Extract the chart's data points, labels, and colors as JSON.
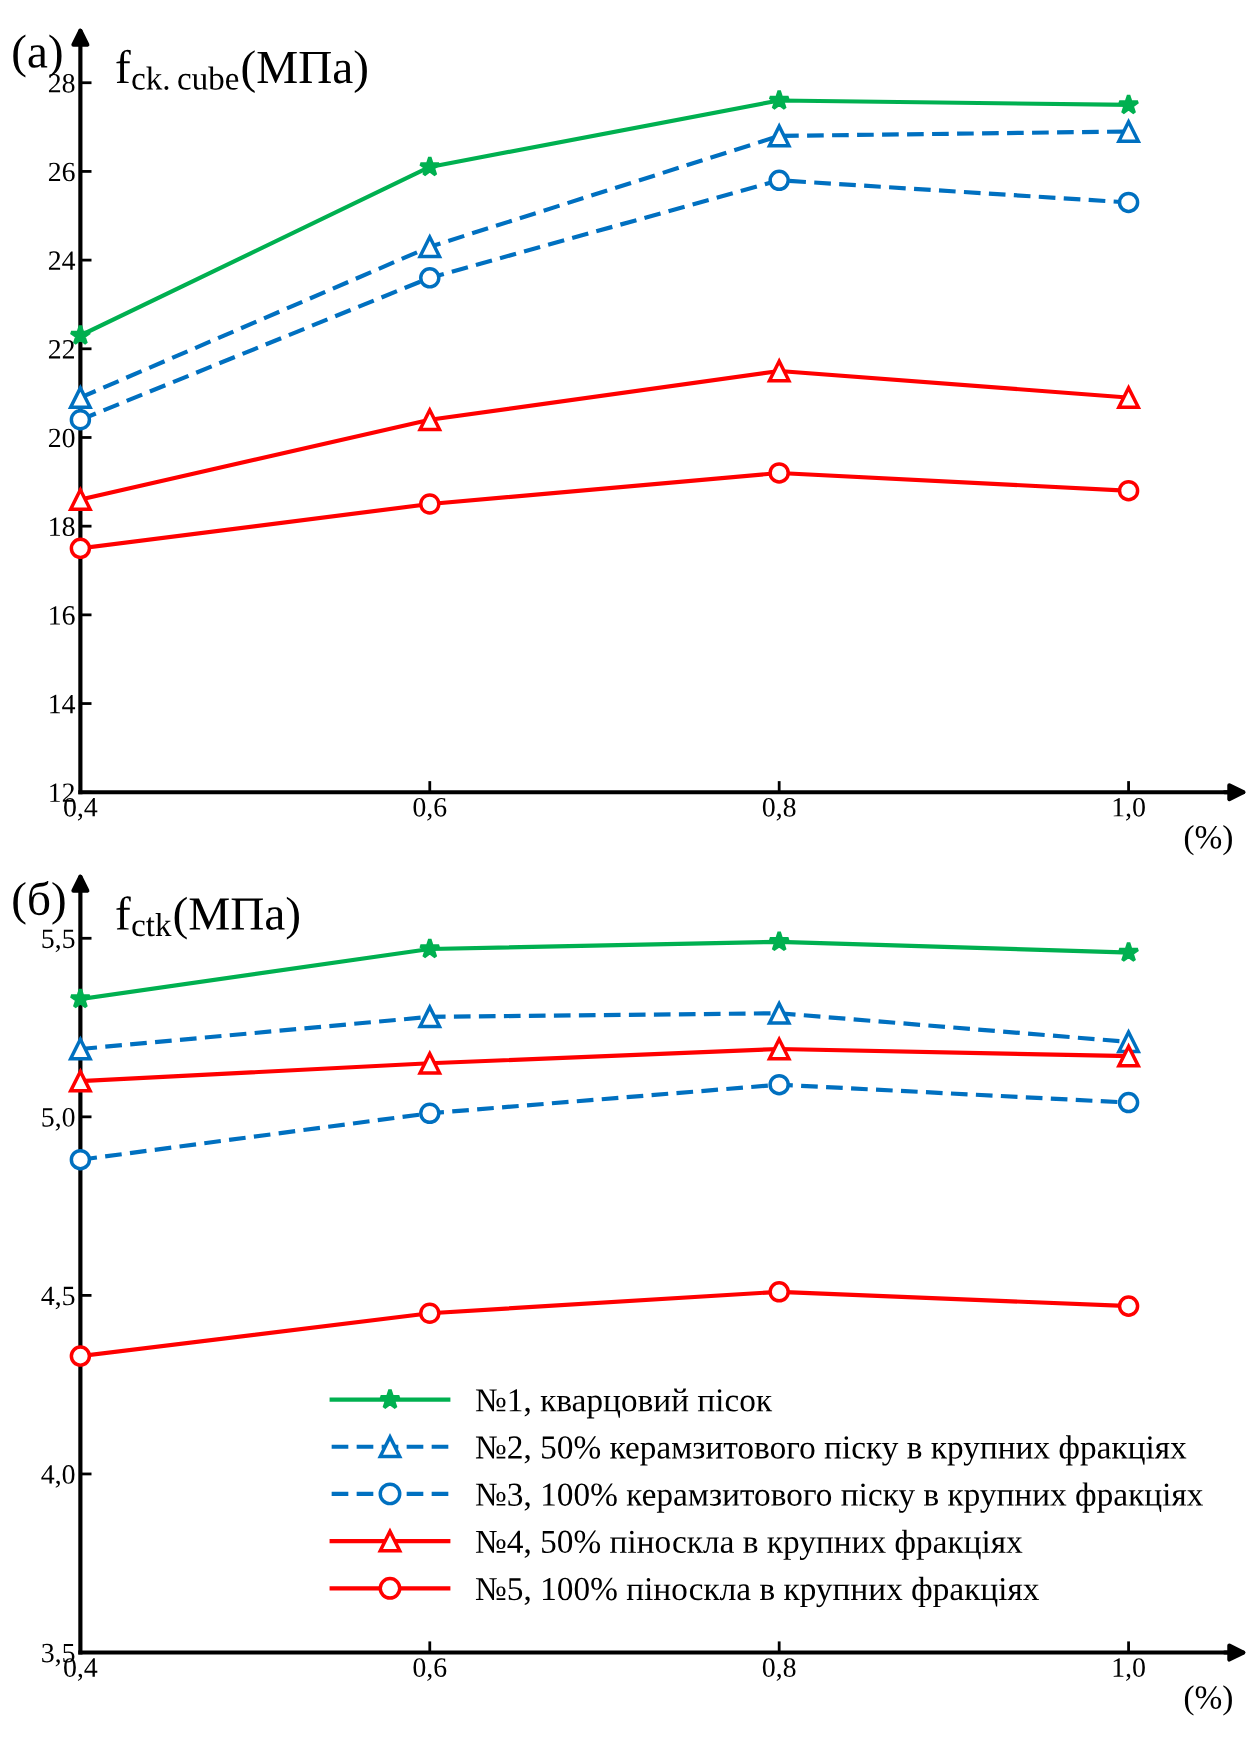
{
  "chart_data": [
    {
      "type": "line",
      "title": "(а)",
      "ylabel": "f$_{ck.cube}$(МПа)",
      "xlabel": "(%)",
      "x": [
        0.4,
        0.6,
        0.8,
        1.0
      ],
      "xlim": [
        0.4,
        1.06
      ],
      "xticks": [
        {
          "value": 0.4,
          "label": "0,4"
        },
        {
          "value": 0.6,
          "label": "0,6"
        },
        {
          "value": 0.8,
          "label": "0,8"
        },
        {
          "value": 1.0,
          "label": "1,0"
        }
      ],
      "ylim": [
        12,
        29
      ],
      "yticks": [
        12,
        14,
        16,
        18,
        20,
        22,
        24,
        26,
        28
      ],
      "grid": false,
      "legend": false,
      "series": [
        {
          "color": "#00b050",
          "marker": "star",
          "line_style": "solid",
          "values": [
            22.3,
            26.1,
            27.6,
            27.5
          ]
        },
        {
          "color": "#0070c0",
          "marker": "triangle",
          "line_style": "dashed",
          "values": [
            20.9,
            24.3,
            26.8,
            26.9
          ]
        },
        {
          "color": "#0070c0",
          "marker": "circle",
          "line_style": "dashed",
          "values": [
            20.4,
            23.6,
            25.8,
            25.3
          ]
        },
        {
          "color": "#ff0000",
          "marker": "triangle",
          "line_style": "solid",
          "values": [
            18.6,
            20.4,
            21.5,
            20.9
          ]
        },
        {
          "color": "#ff0000",
          "marker": "circle",
          "line_style": "solid",
          "values": [
            17.5,
            18.5,
            19.2,
            18.8
          ]
        }
      ]
    },
    {
      "type": "line",
      "title": "(б)",
      "ylabel": "f$_{ctk}$(МПа)",
      "xlabel": "(%)",
      "x": [
        0.4,
        0.6,
        0.8,
        1.0
      ],
      "xlim": [
        0.4,
        1.06
      ],
      "xticks": [
        {
          "value": 0.4,
          "label": "0,4"
        },
        {
          "value": 0.6,
          "label": "0,6"
        },
        {
          "value": 0.8,
          "label": "0,8"
        },
        {
          "value": 1.0,
          "label": "1,0"
        }
      ],
      "ylim": [
        3.5,
        5.65
      ],
      "yticks": [
        {
          "value": 3.5,
          "label": "3,5"
        },
        {
          "value": 4.0,
          "label": "4,0"
        },
        {
          "value": 4.5,
          "label": "4,5"
        },
        {
          "value": 5.0,
          "label": "5,0"
        },
        {
          "value": 5.5,
          "label": "5,5"
        }
      ],
      "grid": false,
      "legend": "bottom right",
      "series": [
        {
          "name": "№1, кварцовий пісок",
          "color": "#00b050",
          "marker": "star",
          "line_style": "solid",
          "values": [
            5.33,
            5.47,
            5.49,
            5.46
          ]
        },
        {
          "name": "№2, 50% керамзитового піску в крупних фракціях",
          "color": "#0070c0",
          "marker": "triangle",
          "line_style": "dashed",
          "values": [
            5.19,
            5.28,
            5.29,
            5.21
          ]
        },
        {
          "name": "№3, 100% керамзитового піску в крупних фракціях",
          "color": "#0070c0",
          "marker": "circle",
          "line_style": "dashed",
          "values": [
            4.88,
            5.01,
            5.09,
            5.04
          ]
        },
        {
          "name": "№4, 50% піноскла в крупних фракціях",
          "color": "#ff0000",
          "marker": "triangle",
          "line_style": "solid",
          "values": [
            5.1,
            5.15,
            5.19,
            5.17
          ]
        },
        {
          "name": "№5, 100% піноскла в крупних фракціях",
          "color": "#ff0000",
          "marker": "circle",
          "line_style": "solid",
          "values": [
            4.33,
            4.45,
            4.51,
            4.47
          ]
        }
      ]
    }
  ]
}
